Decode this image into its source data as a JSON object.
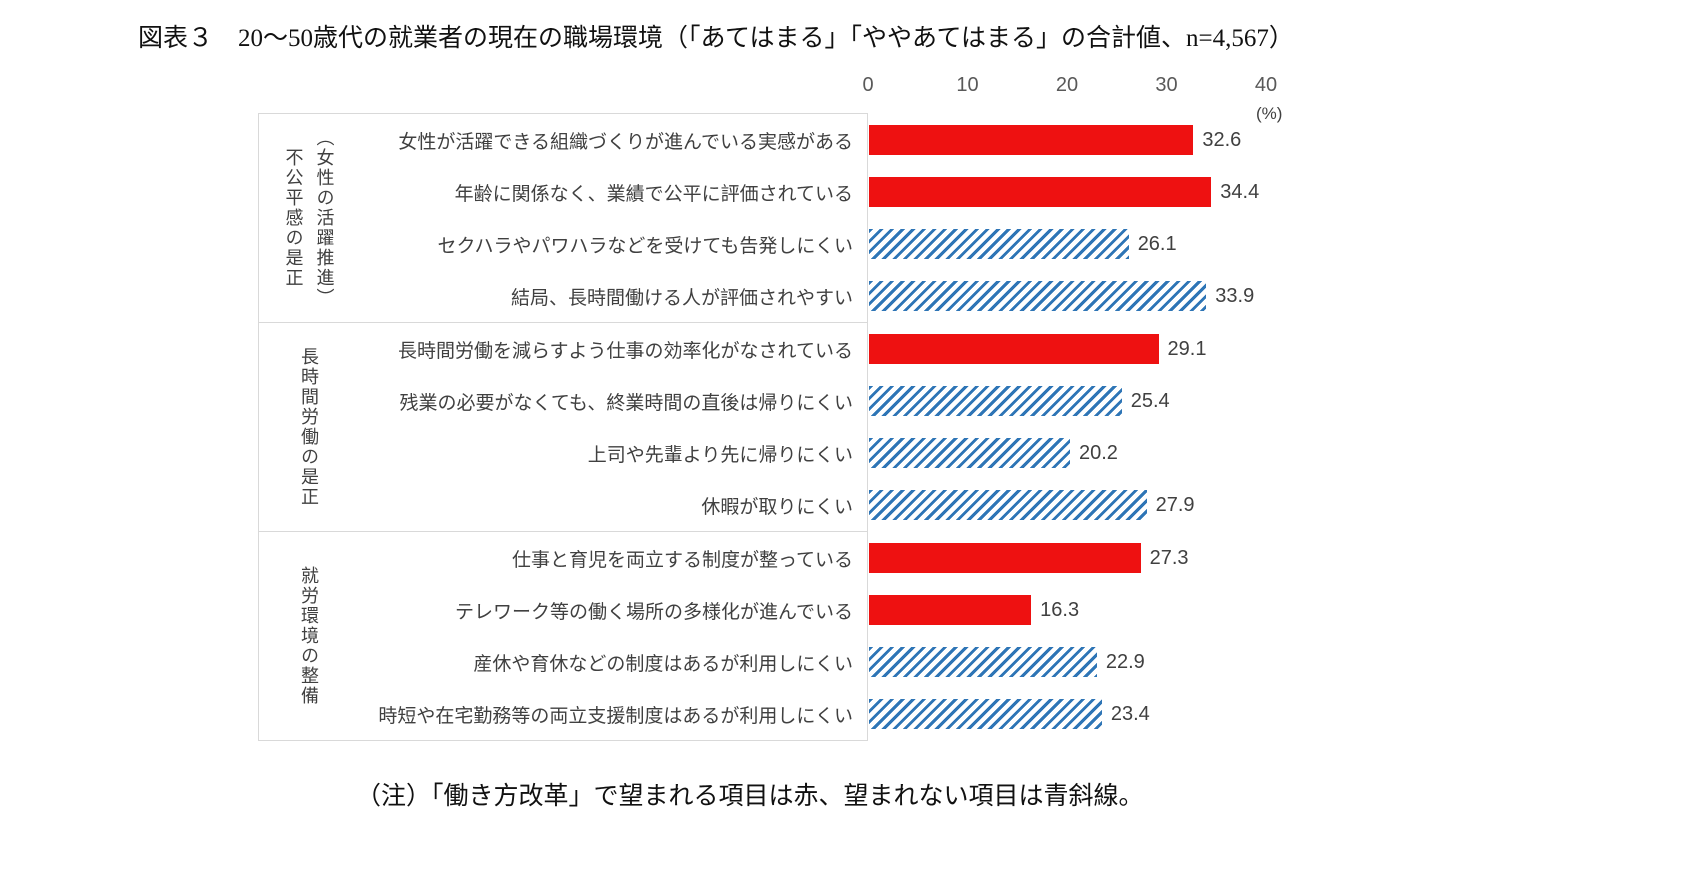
{
  "title": "図表３　20～50歳代の就業者の現在の職場環境（「あてはまる」「ややあてはまる」の合計値、n=4,567）",
  "note": "（注）「働き方改革」で望まれる項目は赤、望まれない項目は青斜線。",
  "chart_data": {
    "type": "bar",
    "orientation": "horizontal",
    "xlim": [
      0,
      40
    ],
    "x_ticks": [
      "0",
      "10",
      "20",
      "30",
      "40"
    ],
    "unit_label": "(%)",
    "grid": false,
    "colors": {
      "desired_red": "#ee1111",
      "not_desired_blue": "#2e75b6",
      "panel_border": "#d9d9d9"
    },
    "groups": [
      {
        "label_lines": [
          "不公平感の是正",
          "（女性の活躍推進）"
        ],
        "items": [
          {
            "label": "女性が活躍できる組織づくりが進んでいる実感がある",
            "value": 32.6,
            "style": "red"
          },
          {
            "label": "年齢に関係なく、業績で公平に評価されている",
            "value": 34.4,
            "style": "red"
          },
          {
            "label": "セクハラやパワハラなどを受けても告発しにくい",
            "value": 26.1,
            "style": "blue"
          },
          {
            "label": "結局、長時間働ける人が評価されやすい",
            "value": 33.9,
            "style": "blue"
          }
        ]
      },
      {
        "label_lines": [
          "長時間労働の是正"
        ],
        "items": [
          {
            "label": "長時間労働を減らすよう仕事の効率化がなされている",
            "value": 29.1,
            "style": "red"
          },
          {
            "label": "残業の必要がなくても、終業時間の直後は帰りにくい",
            "value": 25.4,
            "style": "blue"
          },
          {
            "label": "上司や先輩より先に帰りにくい",
            "value": 20.2,
            "style": "blue"
          },
          {
            "label": "休暇が取りにくい",
            "value": 27.9,
            "style": "blue"
          }
        ]
      },
      {
        "label_lines": [
          "就労環境の整備"
        ],
        "items": [
          {
            "label": "仕事と育児を両立する制度が整っている",
            "value": 27.3,
            "style": "red"
          },
          {
            "label": "テレワーク等の働く場所の多様化が進んでいる",
            "value": 16.3,
            "style": "red"
          },
          {
            "label": "産休や育休などの制度はあるが利用しにくい",
            "value": 22.9,
            "style": "blue"
          },
          {
            "label": "時短や在宅勤務等の両立支援制度はあるが利用しにくい",
            "value": 23.4,
            "style": "blue"
          }
        ]
      }
    ]
  }
}
